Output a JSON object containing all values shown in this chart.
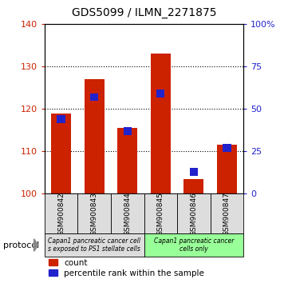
{
  "title": "GDS5099 / ILMN_2271875",
  "categories": [
    "GSM900842",
    "GSM900843",
    "GSM900844",
    "GSM900845",
    "GSM900846",
    "GSM900847"
  ],
  "count_values": [
    119,
    127,
    115.5,
    133,
    103.5,
    111.5
  ],
  "percentile_values": [
    44,
    57,
    37,
    59,
    13,
    27
  ],
  "bar_bottom": 100,
  "ylim_left": [
    100,
    140
  ],
  "ylim_right": [
    0,
    100
  ],
  "yticks_left": [
    100,
    110,
    120,
    130,
    140
  ],
  "yticks_right": [
    0,
    25,
    50,
    75,
    100
  ],
  "bar_color_red": "#CC2200",
  "bar_color_blue": "#2222CC",
  "group1_label": "Capan1 pancreatic cancer cell\ns exposed to PS1 stellate cells",
  "group2_label": "Capan1 pancreatic cancer\ncells only",
  "group1_color": "#dddddd",
  "group2_color": "#99ff99",
  "protocol_label": "protocol",
  "legend_count": "count",
  "legend_percentile": "percentile rank within the sample",
  "background_color": "#ffffff"
}
